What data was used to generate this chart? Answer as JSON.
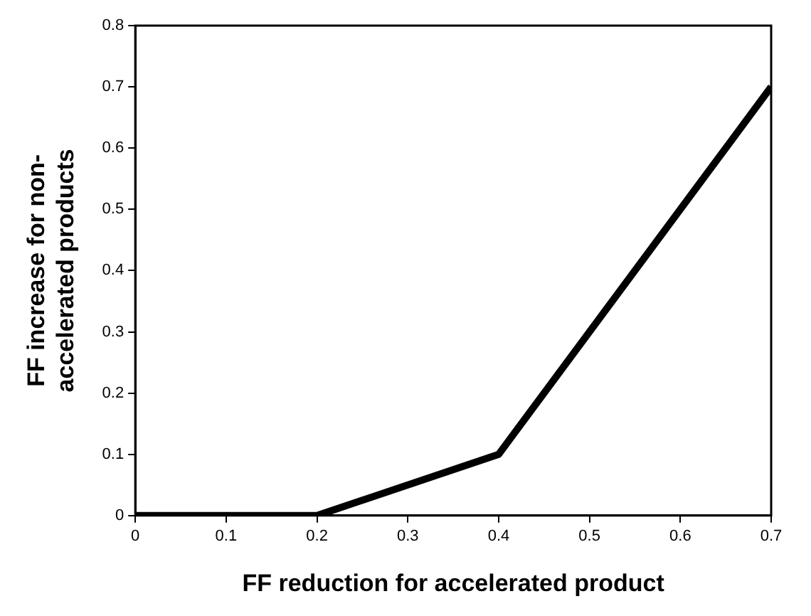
{
  "chart_data": {
    "type": "line",
    "xlabel": "FF reduction for accelerated product",
    "ylabel": "FF increase for non-accelerated products",
    "x": [
      0,
      0.2,
      0.4,
      0.7
    ],
    "series": [
      {
        "color": "#000000",
        "values": [
          0,
          0,
          0.1,
          0.7
        ]
      }
    ],
    "xlim": [
      0,
      0.7
    ],
    "xticks": [
      0,
      0.1,
      0.2,
      0.3,
      0.4,
      0.5,
      0.6,
      0.7
    ],
    "ylim": [
      0,
      0.8
    ],
    "yticks": [
      0,
      0.1,
      0.2,
      0.3,
      0.4,
      0.5,
      0.6,
      0.7,
      0.8
    ],
    "grid": false,
    "legend": false,
    "marker": "none",
    "line_style": "solid"
  }
}
